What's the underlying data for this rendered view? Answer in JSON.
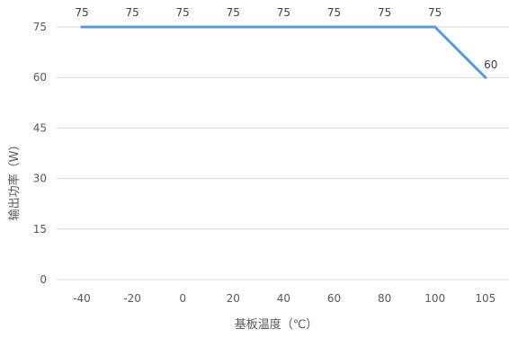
{
  "chart_data": {
    "type": "line",
    "categories": [
      "-40",
      "-20",
      "0",
      "20",
      "40",
      "60",
      "80",
      "100",
      "105"
    ],
    "series": [
      {
        "values": [
          75,
          75,
          75,
          75,
          75,
          75,
          75,
          75,
          60
        ],
        "color": "#5b9bd5"
      }
    ],
    "data_labels": [
      "75",
      "75",
      "75",
      "75",
      "75",
      "75",
      "75",
      "75",
      "60"
    ],
    "xlabel": "基板温度（℃）",
    "ylabel": "输出功率（W）",
    "ylim": [
      0,
      75
    ],
    "yticks": [
      0,
      15,
      30,
      45,
      60,
      75
    ],
    "grid": true,
    "legend": "none"
  }
}
